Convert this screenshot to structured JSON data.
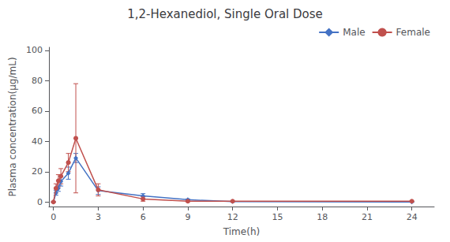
{
  "chart_data": {
    "type": "line",
    "title": "1,2-Hexanediol, Single Oral Dose",
    "xlabel": "Time(h)",
    "ylabel": "Plasma concentration(µg/mL)",
    "x": [
      0,
      0.17,
      0.33,
      0.5,
      1.0,
      1.5,
      3.0,
      6.0,
      9.0,
      12.0,
      24.0
    ],
    "series": [
      {
        "name": "Male",
        "color": "#4472C4",
        "marker": "diamond",
        "values": [
          0,
          6.0,
          9.0,
          13.5,
          19.0,
          29.0,
          7.5,
          4.0,
          1.5,
          0.2,
          0.0
        ],
        "err": [
          0,
          1.5,
          2.0,
          3.0,
          4.0,
          3.0,
          2.5,
          1.5,
          0.5,
          0.0,
          0.0
        ]
      },
      {
        "name": "Female",
        "color": "#C0504D",
        "marker": "circle",
        "values": [
          0,
          9.0,
          14.0,
          17.0,
          26.0,
          42.0,
          8.0,
          2.0,
          0.5,
          0.5,
          0.5
        ],
        "err": [
          0,
          3.0,
          4.0,
          5.0,
          6.0,
          36.0,
          4.0,
          1.5,
          0.3,
          0.0,
          0.0
        ]
      }
    ],
    "xlim": [
      -0.3,
      25.5
    ],
    "ylim": [
      -3,
      102
    ],
    "xticks": [
      0,
      3,
      6,
      9,
      12,
      15,
      18,
      21,
      24
    ],
    "yticks": [
      0,
      20,
      40,
      60,
      80,
      100
    ],
    "grid": false,
    "legend": "upper right"
  }
}
